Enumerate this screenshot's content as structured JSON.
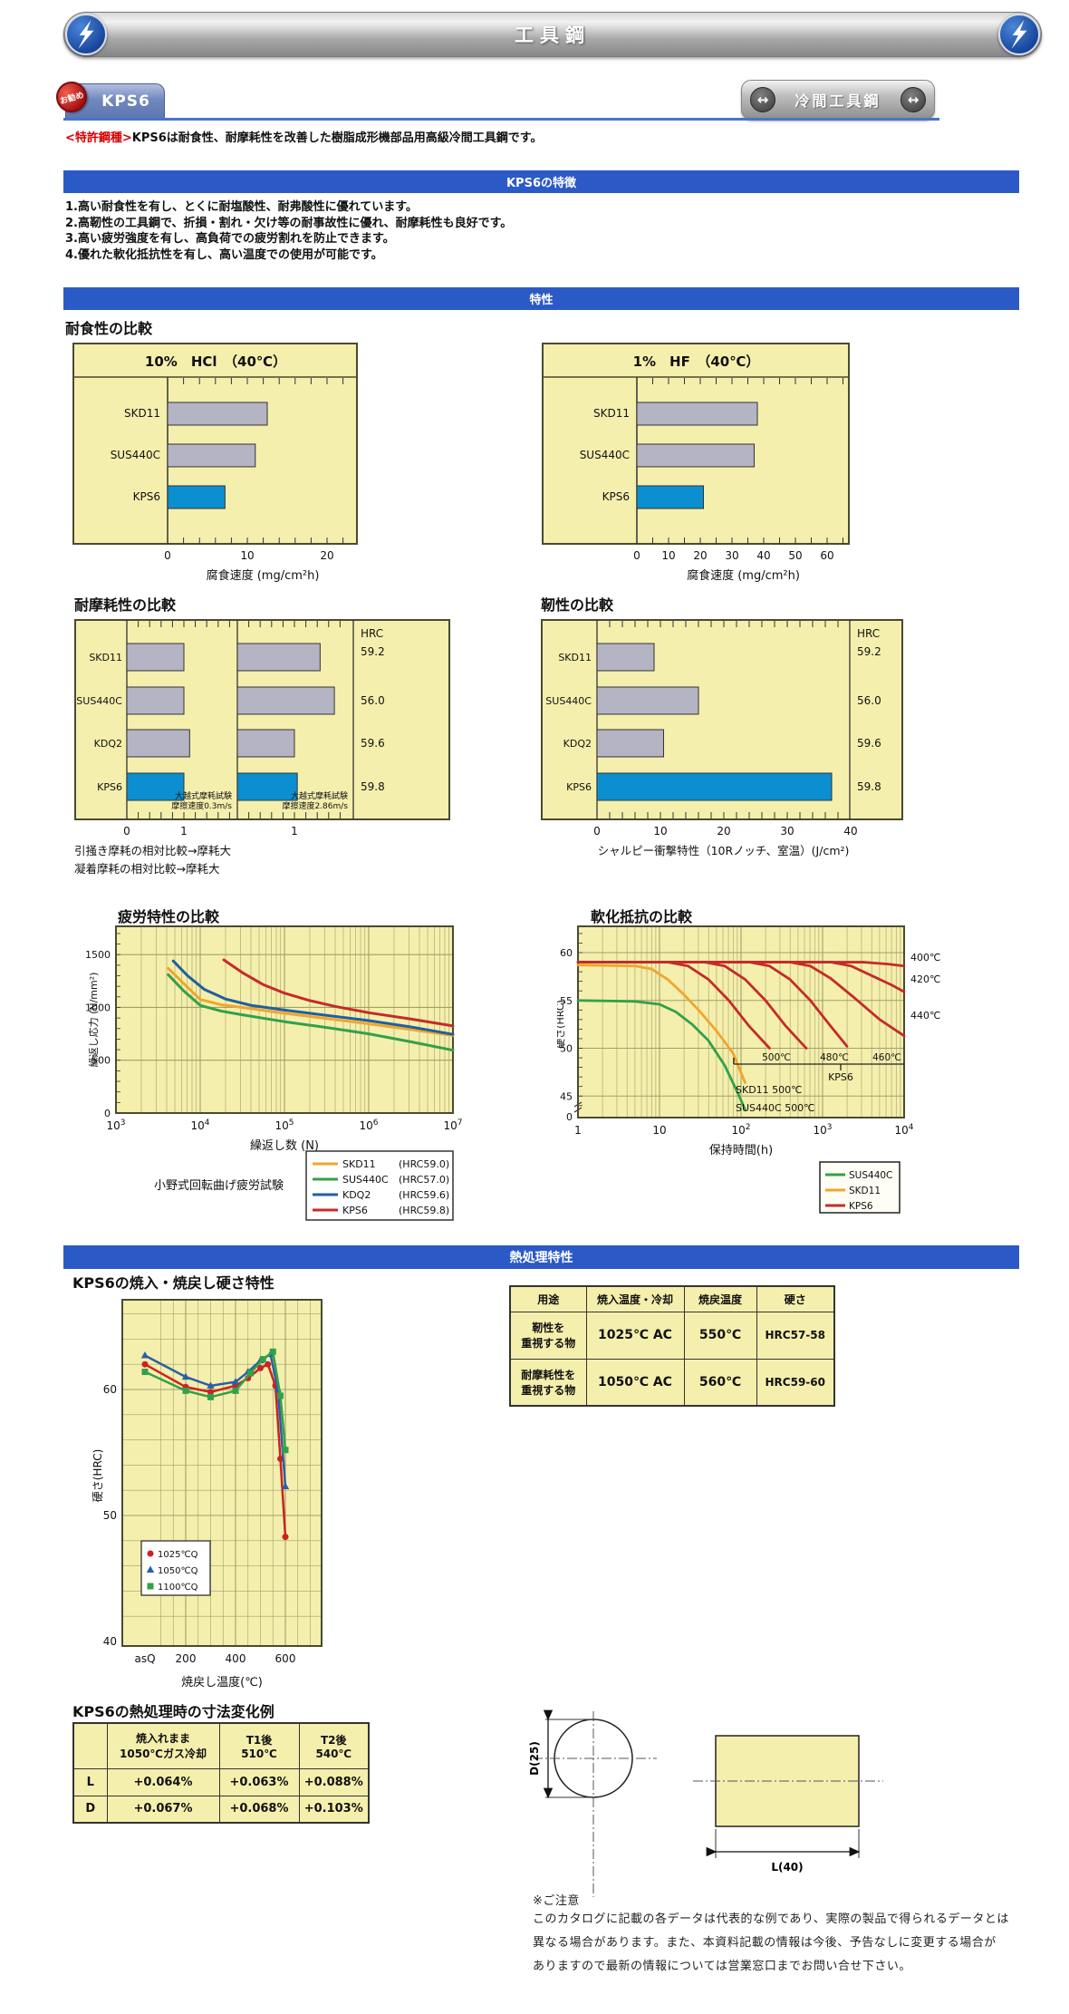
{
  "header": {
    "title": "工具鋼"
  },
  "nav": {
    "tab": "KPS6",
    "badge": "お勧め",
    "right": "冷間工具鋼",
    "arrow": "↔"
  },
  "intro": {
    "patent": "<特許鋼種>",
    "text": "KPS6は耐食性、耐摩耗性を改善した樹脂成形機部品用高級冷間工具鋼です。"
  },
  "section_bars": {
    "features": "KPS6の特徴",
    "properties": "特性",
    "heat": "熱処理特性"
  },
  "features": [
    "1.高い耐食性を有し、とくに耐塩酸性、耐弗酸性に優れています。",
    "2.高靭性の工具鋼で、折損・割れ・欠け等の耐事故性に優れ、耐摩耗性も良好です。",
    "3.高い疲労強度を有し、高負荷での疲労割れを防止できます。",
    "4.優れた軟化抵抗性を有し、高い温度での使用が可能です。"
  ],
  "headings": {
    "corrosion": "耐食性の比較",
    "wear": "耐摩耗性の比較",
    "toughness": "靭性の比較",
    "fatigue": "疲労特性の比較",
    "softening": "軟化抵抗の比較",
    "tempering": "KPS6の焼入・焼戻し硬さ特性",
    "dimension": "KPS6の熱処理時の寸法変化例"
  },
  "chart_data": [
    {
      "id": "hcl",
      "type": "bar",
      "orientation": "horizontal",
      "title": "10%　HCl　（40℃）",
      "categories": [
        "SKD11",
        "SUS440C",
        "KPS6"
      ],
      "values": [
        12.5,
        11,
        7.2
      ],
      "xticks": [
        0,
        10,
        20
      ],
      "xlim": [
        0,
        23
      ],
      "minor": 2,
      "xlabel": "腐食速度 (mg/cm²h)",
      "highlight": "KPS6",
      "bar_color": "#b4b4c4",
      "highlight_color": "#0b8fd0"
    },
    {
      "id": "hf",
      "type": "bar",
      "orientation": "horizontal",
      "title": "1%　HF　（40℃）",
      "categories": [
        "SKD11",
        "SUS440C",
        "KPS6"
      ],
      "values": [
        38,
        37,
        21
      ],
      "xticks": [
        0,
        10,
        20,
        30,
        40,
        50,
        60
      ],
      "xlim": [
        0,
        66
      ],
      "minor": 5,
      "xlabel": "腐食速度 (mg/cm²h)",
      "highlight": "KPS6",
      "bar_color": "#b4b4c4",
      "highlight_color": "#0b8fd0"
    },
    {
      "id": "wear",
      "type": "bar",
      "orientation": "horizontal",
      "categories": [
        "SKD11",
        "SUS440C",
        "KDQ2",
        "KPS6"
      ],
      "series": [
        {
          "name": "大越式摩耗試験 摩擦速度0.3m/s",
          "values": [
            1.0,
            1.0,
            1.1,
            1.0
          ]
        },
        {
          "name": "大越式摩耗試験 摩擦速度2.86m/s",
          "values": [
            1.45,
            1.7,
            1.0,
            1.05
          ]
        }
      ],
      "notes": [
        [
          "大越式摩耗試験",
          "摩擦速度0.3m/s"
        ],
        [
          "大越式摩耗試験",
          "摩擦速度2.86m/s"
        ]
      ],
      "hrc_header": "HRC",
      "hrc_values": [
        "59.2",
        "56.0",
        "59.6",
        "59.8"
      ],
      "axis_labels": [
        "0",
        "1",
        "1"
      ],
      "captions": [
        "引掻き摩耗の相対比較→摩耗大",
        "凝着摩耗の相対比較→摩耗大"
      ],
      "highlight": "KPS6",
      "bar_color": "#b4b4c4",
      "highlight_color": "#0b8fd0"
    },
    {
      "id": "toughness",
      "type": "bar",
      "orientation": "horizontal",
      "categories": [
        "SKD11",
        "SUS440C",
        "KDQ2",
        "KPS6"
      ],
      "values": [
        9,
        16,
        10.5,
        37
      ],
      "xticks": [
        0,
        10,
        20,
        30,
        40
      ],
      "xlim": [
        0,
        40
      ],
      "minor": 2,
      "xlabel": "シャルピー衝撃特性（10Rノッチ、室温）(J/cm²)",
      "hrc_header": "HRC",
      "hrc_values": [
        "59.2",
        "56.0",
        "59.6",
        "59.8"
      ],
      "highlight": "KPS6",
      "bar_color": "#b4b4c4",
      "highlight_color": "#0b8fd0"
    },
    {
      "id": "fatigue",
      "type": "line",
      "xscale": "log",
      "xlabel": "繰返し数 (N)",
      "ylabel": "繰返し応力 (N/mm²)",
      "xlim": [
        1000,
        10000000
      ],
      "ylim": [
        0,
        1750
      ],
      "yticks": [
        0,
        500,
        1000,
        1500
      ],
      "caption": "小野式回転曲げ疲労試験",
      "legend": [
        {
          "name": "SKD11",
          "hrc": "(HRC59.0)",
          "color": "#f2a52c"
        },
        {
          "name": "SUS440C",
          "hrc": "(HRC57.0)",
          "color": "#33a04a"
        },
        {
          "name": "KDQ2",
          "hrc": "(HRC59.6)",
          "color": "#1f5fa0"
        },
        {
          "name": "KPS6",
          "hrc": "(HRC59.8)",
          "color": "#c62a2a"
        }
      ],
      "series": [
        {
          "name": "SKD11",
          "color": "#f2a52c",
          "points": [
            [
              3.62,
              1370
            ],
            [
              3.8,
              1230
            ],
            [
              4.0,
              1075
            ],
            [
              4.25,
              1025
            ],
            [
              4.5,
              1000
            ],
            [
              5.0,
              945
            ],
            [
              5.5,
              895
            ],
            [
              6.0,
              845
            ],
            [
              6.5,
              790
            ],
            [
              7.0,
              735
            ]
          ]
        },
        {
          "name": "SUS440C",
          "color": "#33a04a",
          "points": [
            [
              3.62,
              1310
            ],
            [
              3.8,
              1160
            ],
            [
              4.0,
              1020
            ],
            [
              4.25,
              965
            ],
            [
              4.5,
              930
            ],
            [
              5.0,
              865
            ],
            [
              5.5,
              810
            ],
            [
              6.0,
              750
            ],
            [
              6.5,
              675
            ],
            [
              7.0,
              595
            ]
          ]
        },
        {
          "name": "KDQ2",
          "color": "#1f5fa0",
          "points": [
            [
              3.68,
              1440
            ],
            [
              3.85,
              1300
            ],
            [
              4.05,
              1170
            ],
            [
              4.3,
              1080
            ],
            [
              4.6,
              1020
            ],
            [
              5.0,
              975
            ],
            [
              5.5,
              925
            ],
            [
              6.0,
              875
            ],
            [
              6.5,
              815
            ],
            [
              7.0,
              745
            ]
          ]
        },
        {
          "name": "KPS6",
          "color": "#c62a2a",
          "points": [
            [
              4.28,
              1450
            ],
            [
              4.5,
              1330
            ],
            [
              4.75,
              1215
            ],
            [
              5.0,
              1135
            ],
            [
              5.3,
              1065
            ],
            [
              5.6,
              1010
            ],
            [
              6.0,
              950
            ],
            [
              6.5,
              890
            ],
            [
              7.0,
              825
            ]
          ]
        }
      ]
    },
    {
      "id": "softening",
      "type": "line",
      "xscale": "log",
      "xlabel": "保持時間(h)",
      "ylabel": "硬さ(HRC)",
      "xlim": [
        1,
        10000
      ],
      "yticks": [
        60,
        55,
        50,
        45
      ],
      "ybreak": "0",
      "right_labels": [
        {
          "label": "400℃",
          "y": 40
        },
        {
          "label": "420℃",
          "y": 64
        },
        {
          "label": "440℃",
          "y": 104
        }
      ],
      "bracket": {
        "labels": [
          "500℃",
          "480℃",
          "460℃"
        ],
        "name": "KPS6"
      },
      "inline_labels": [
        "SKD11 500℃",
        "SUS440C 500℃"
      ],
      "legend": [
        {
          "name": "SUS440C",
          "color": "#33a04a"
        },
        {
          "name": "SKD11",
          "color": "#f2a52c"
        },
        {
          "name": "KPS6",
          "color": "#c62a2a"
        }
      ],
      "series": [
        {
          "name": "SUS440C 500℃",
          "color": "#33a04a",
          "points": [
            [
              0,
              55
            ],
            [
              0.7,
              54.9
            ],
            [
              1.0,
              54.6
            ],
            [
              1.2,
              53.8
            ],
            [
              1.4,
              52.5
            ],
            [
              1.6,
              50.8
            ],
            [
              1.8,
              48.2
            ],
            [
              1.95,
              45.5
            ],
            [
              2.05,
              43.6
            ]
          ]
        },
        {
          "name": "SKD11 500℃",
          "color": "#f2a52c",
          "points": [
            [
              0,
              58.7
            ],
            [
              0.7,
              58.6
            ],
            [
              0.9,
              58.3
            ],
            [
              1.1,
              57.2
            ],
            [
              1.3,
              55.6
            ],
            [
              1.5,
              53.8
            ],
            [
              1.7,
              51.8
            ],
            [
              1.9,
              49.5
            ],
            [
              2.05,
              46.4
            ]
          ]
        },
        {
          "name": "KPS6 500℃",
          "color": "#c62a2a",
          "points": [
            [
              0,
              59
            ],
            [
              1.1,
              59
            ],
            [
              1.35,
              58.6
            ],
            [
              1.6,
              57.2
            ],
            [
              1.85,
              55
            ],
            [
              2.1,
              52.3
            ],
            [
              2.35,
              50
            ]
          ]
        },
        {
          "name": "KPS6 480℃",
          "color": "#c62a2a",
          "points": [
            [
              0,
              59
            ],
            [
              1.55,
              59
            ],
            [
              1.8,
              58.6
            ],
            [
              2.05,
              57.2
            ],
            [
              2.3,
              55
            ],
            [
              2.55,
              52.3
            ],
            [
              2.8,
              50
            ]
          ]
        },
        {
          "name": "KPS6 460℃",
          "color": "#c62a2a",
          "points": [
            [
              0,
              59
            ],
            [
              2.1,
              59
            ],
            [
              2.35,
              58.6
            ],
            [
              2.6,
              57.2
            ],
            [
              2.85,
              55
            ],
            [
              3.1,
              52.3
            ],
            [
              3.3,
              50.2
            ]
          ]
        },
        {
          "name": "KPS6 440℃",
          "color": "#c62a2a",
          "points": [
            [
              0,
              59
            ],
            [
              2.6,
              59
            ],
            [
              2.85,
              58.6
            ],
            [
              3.1,
              57.3
            ],
            [
              3.4,
              55.2
            ],
            [
              3.7,
              53
            ],
            [
              4.0,
              51.3
            ]
          ]
        },
        {
          "name": "KPS6 420℃",
          "color": "#c62a2a",
          "points": [
            [
              0,
              59
            ],
            [
              3.1,
              59
            ],
            [
              3.35,
              58.6
            ],
            [
              3.6,
              57.6
            ],
            [
              3.85,
              56.6
            ],
            [
              4.0,
              55.9
            ]
          ]
        },
        {
          "name": "KPS6 400℃",
          "color": "#c62a2a",
          "points": [
            [
              0,
              59
            ],
            [
              3.5,
              59
            ],
            [
              3.8,
              58.8
            ],
            [
              4.0,
              58.6
            ]
          ]
        }
      ]
    },
    {
      "id": "tempering",
      "type": "line",
      "xlabel": "焼戻し温度(℃)",
      "ylabel": "硬さ(HRC)",
      "xticks": [
        "asQ",
        "200",
        "400",
        "600"
      ],
      "yticks": [
        40,
        50,
        60
      ],
      "legend": [
        {
          "label": "1025℃Q",
          "color": "#cc2222",
          "marker": "circle"
        },
        {
          "label": "1050℃Q",
          "color": "#2a5fa8",
          "marker": "triangle"
        },
        {
          "label": "1100℃Q",
          "color": "#33a04a",
          "marker": "square"
        }
      ],
      "series": [
        {
          "name": "1025℃Q",
          "color": "#cc2222",
          "marker": "circle",
          "points": [
            [
              "asQ",
              62.0
            ],
            [
              200,
              60.2
            ],
            [
              300,
              59.8
            ],
            [
              400,
              60.3
            ],
            [
              450,
              60.9
            ],
            [
              500,
              61.7
            ],
            [
              530,
              62.0
            ],
            [
              560,
              60.3
            ],
            [
              580,
              54.5
            ],
            [
              600,
              48.3
            ]
          ]
        },
        {
          "name": "1050℃Q",
          "color": "#2a5fa8",
          "marker": "triangle",
          "points": [
            [
              "asQ",
              62.7
            ],
            [
              200,
              61.0
            ],
            [
              300,
              60.3
            ],
            [
              400,
              60.6
            ],
            [
              450,
              61.4
            ],
            [
              500,
              62.3
            ],
            [
              540,
              62.8
            ],
            [
              570,
              60.0
            ],
            [
              600,
              52.3
            ]
          ]
        },
        {
          "name": "1100℃Q",
          "color": "#33a04a",
          "marker": "square",
          "points": [
            [
              "asQ",
              61.4
            ],
            [
              200,
              59.9
            ],
            [
              300,
              59.4
            ],
            [
              400,
              59.9
            ],
            [
              460,
              61.3
            ],
            [
              510,
              62.4
            ],
            [
              550,
              63.0
            ],
            [
              580,
              59.5
            ],
            [
              600,
              55.2
            ]
          ]
        }
      ]
    }
  ],
  "treatment_table": {
    "headers": [
      "用途",
      "焼入温度・冷却",
      "焼戻温度",
      "硬さ"
    ],
    "rows": [
      [
        "靭性を\n重視する物",
        "1025℃ AC",
        "550℃",
        "HRC57-58"
      ],
      [
        "耐摩耗性を\n重視する物",
        "1050℃ AC",
        "560℃",
        "HRC59-60"
      ]
    ]
  },
  "dimension_table": {
    "headers": [
      "",
      "焼入れまま\n1050℃ガス冷却",
      "T1後\n510℃",
      "T2後\n540℃"
    ],
    "rows": [
      {
        "label": "L",
        "values": [
          "+0.064%",
          "+0.063%",
          "+0.088%"
        ]
      },
      {
        "label": "D",
        "values": [
          "+0.067%",
          "+0.068%",
          "+0.103%"
        ]
      }
    ]
  },
  "diagram": {
    "d_label": "D(25)",
    "l_label": "L(40)"
  },
  "notes": {
    "title": "※ご注意",
    "lines": [
      "このカタログに記載の各データは代表的な例であり、実際の製品で得られるデータとは",
      "異なる場合があります。また、本資料記載の情報は今後、予告なしに変更する場合が",
      "ありますので最新の情報については営業窓口までお問い合せ下さい。"
    ]
  }
}
